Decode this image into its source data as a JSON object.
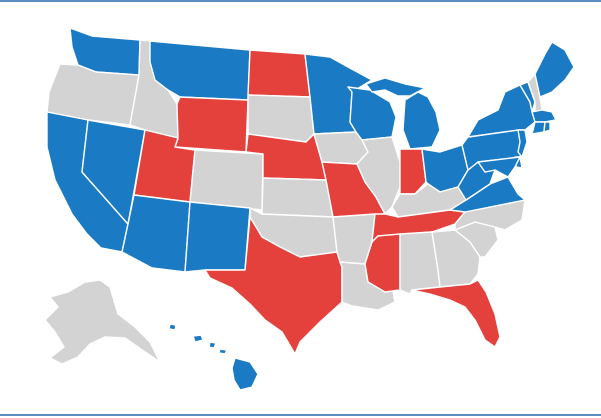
{
  "map": {
    "colors": {
      "blue": "#1a7bc4",
      "red": "#e5413c",
      "gray": "#d3d3d3",
      "border": "#5b8fc4"
    },
    "states": [
      {
        "id": "WA",
        "category": "blue"
      },
      {
        "id": "OR",
        "category": "gray"
      },
      {
        "id": "CA",
        "category": "blue"
      },
      {
        "id": "NV",
        "category": "blue"
      },
      {
        "id": "ID",
        "category": "gray"
      },
      {
        "id": "MT",
        "category": "blue"
      },
      {
        "id": "WY",
        "category": "red"
      },
      {
        "id": "UT",
        "category": "red"
      },
      {
        "id": "AZ",
        "category": "blue"
      },
      {
        "id": "CO",
        "category": "gray"
      },
      {
        "id": "NM",
        "category": "blue"
      },
      {
        "id": "ND",
        "category": "red"
      },
      {
        "id": "SD",
        "category": "gray"
      },
      {
        "id": "NE",
        "category": "red"
      },
      {
        "id": "KS",
        "category": "gray"
      },
      {
        "id": "OK",
        "category": "gray"
      },
      {
        "id": "TX",
        "category": "red"
      },
      {
        "id": "MN",
        "category": "blue"
      },
      {
        "id": "IA",
        "category": "gray"
      },
      {
        "id": "MO",
        "category": "red"
      },
      {
        "id": "AR",
        "category": "gray"
      },
      {
        "id": "LA",
        "category": "gray"
      },
      {
        "id": "WI",
        "category": "blue"
      },
      {
        "id": "IL",
        "category": "gray"
      },
      {
        "id": "MI",
        "category": "blue"
      },
      {
        "id": "IN",
        "category": "red"
      },
      {
        "id": "OH",
        "category": "blue"
      },
      {
        "id": "KY",
        "category": "gray"
      },
      {
        "id": "TN",
        "category": "red"
      },
      {
        "id": "MS",
        "category": "red"
      },
      {
        "id": "AL",
        "category": "gray"
      },
      {
        "id": "GA",
        "category": "gray"
      },
      {
        "id": "FL",
        "category": "red"
      },
      {
        "id": "SC",
        "category": "gray"
      },
      {
        "id": "NC",
        "category": "gray"
      },
      {
        "id": "VA",
        "category": "blue"
      },
      {
        "id": "WV",
        "category": "blue"
      },
      {
        "id": "PA",
        "category": "blue"
      },
      {
        "id": "NY",
        "category": "blue"
      },
      {
        "id": "VT",
        "category": "blue"
      },
      {
        "id": "NH",
        "category": "gray"
      },
      {
        "id": "ME",
        "category": "blue"
      },
      {
        "id": "MA",
        "category": "blue"
      },
      {
        "id": "CT",
        "category": "blue"
      },
      {
        "id": "RI",
        "category": "blue"
      },
      {
        "id": "NJ",
        "category": "blue"
      },
      {
        "id": "DE",
        "category": "blue"
      },
      {
        "id": "MD",
        "category": "blue"
      },
      {
        "id": "AK",
        "category": "gray"
      },
      {
        "id": "HI",
        "category": "blue"
      }
    ]
  }
}
